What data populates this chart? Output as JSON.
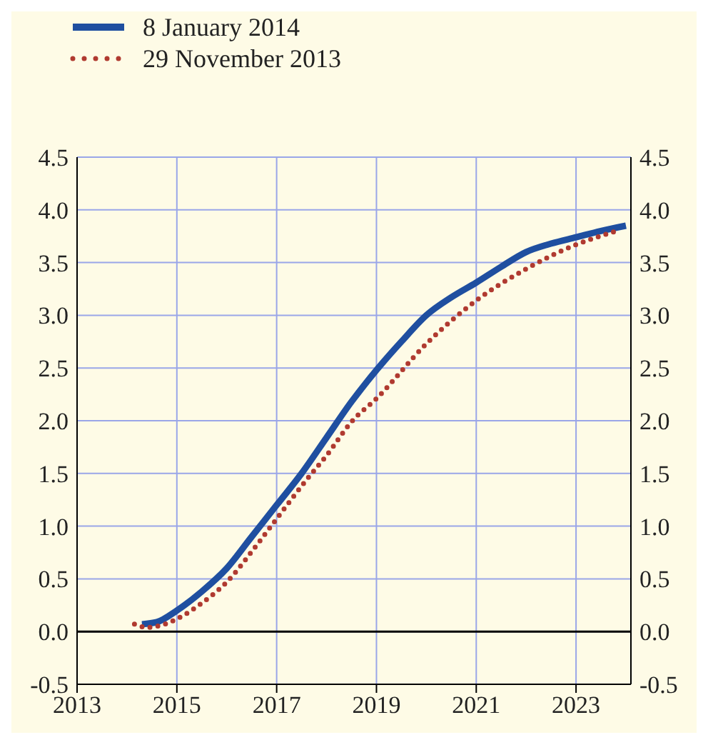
{
  "chart_data": {
    "type": "line",
    "series": [
      {
        "name": "8 January 2014",
        "color": "#1f4fa0",
        "line_style": "solid",
        "x": [
          2014.3,
          2014.6,
          2015,
          2015.5,
          2016,
          2016.5,
          2017,
          2017.5,
          2018,
          2018.5,
          2019,
          2019.5,
          2020,
          2020.5,
          2021,
          2021.5,
          2022,
          2022.5,
          2023,
          2023.5,
          2024
        ],
        "values": [
          0.07,
          0.09,
          0.2,
          0.38,
          0.6,
          0.9,
          1.2,
          1.5,
          1.84,
          2.18,
          2.48,
          2.75,
          3.0,
          3.17,
          3.31,
          3.46,
          3.6,
          3.68,
          3.74,
          3.8,
          3.85
        ]
      },
      {
        "name": "29 November 2013",
        "color": "#b03a30",
        "line_style": "dotted",
        "x": [
          2014.15,
          2014.4,
          2014.6,
          2015,
          2015.5,
          2016,
          2016.6,
          2017,
          2017.6,
          2018,
          2018.5,
          2019,
          2020,
          2021,
          2022,
          2023,
          2023.75
        ],
        "values": [
          0.07,
          0.04,
          0.05,
          0.12,
          0.27,
          0.47,
          0.82,
          1.07,
          1.44,
          1.67,
          1.99,
          2.21,
          2.73,
          3.14,
          3.44,
          3.67,
          3.79
        ]
      }
    ],
    "xlim": [
      2013,
      2024.1
    ],
    "xticks": [
      2013,
      2015,
      2017,
      2019,
      2021,
      2023
    ],
    "ylim": [
      -0.5,
      4.5
    ],
    "yticks": [
      {
        "value": -0.5,
        "label": "-0.5"
      },
      {
        "value": 0,
        "label": "0.0"
      },
      {
        "value": 0.5,
        "label": "0.5"
      },
      {
        "value": 1,
        "label": "1.0"
      },
      {
        "value": 1.5,
        "label": "1.5"
      },
      {
        "value": 2,
        "label": "2.0"
      },
      {
        "value": 2.5,
        "label": "2.5"
      },
      {
        "value": 3,
        "label": "3.0"
      },
      {
        "value": 3.5,
        "label": "3.5"
      },
      {
        "value": 4,
        "label": "4.0"
      },
      {
        "value": 4.5,
        "label": "4.5"
      }
    ],
    "y2lim": [
      -0.5,
      4.5
    ],
    "y2ticks": [
      {
        "value": -0.5,
        "label": "-0.5"
      },
      {
        "value": 0,
        "label": "0.0"
      },
      {
        "value": 0.5,
        "label": "0.5"
      },
      {
        "value": 1,
        "label": "1.0"
      },
      {
        "value": 1.5,
        "label": "1.5"
      },
      {
        "value": 2,
        "label": "2.0"
      },
      {
        "value": 2.5,
        "label": "2.5"
      },
      {
        "value": 3,
        "label": "3.0"
      },
      {
        "value": 3.5,
        "label": "3.5"
      },
      {
        "value": 4,
        "label": "4.0"
      },
      {
        "value": 4.5,
        "label": "4.5"
      }
    ],
    "ref_lines": [
      {
        "axis": "y",
        "value": 0,
        "color": "#000000"
      }
    ],
    "grid": true,
    "legend": "top left",
    "marker": "none"
  }
}
